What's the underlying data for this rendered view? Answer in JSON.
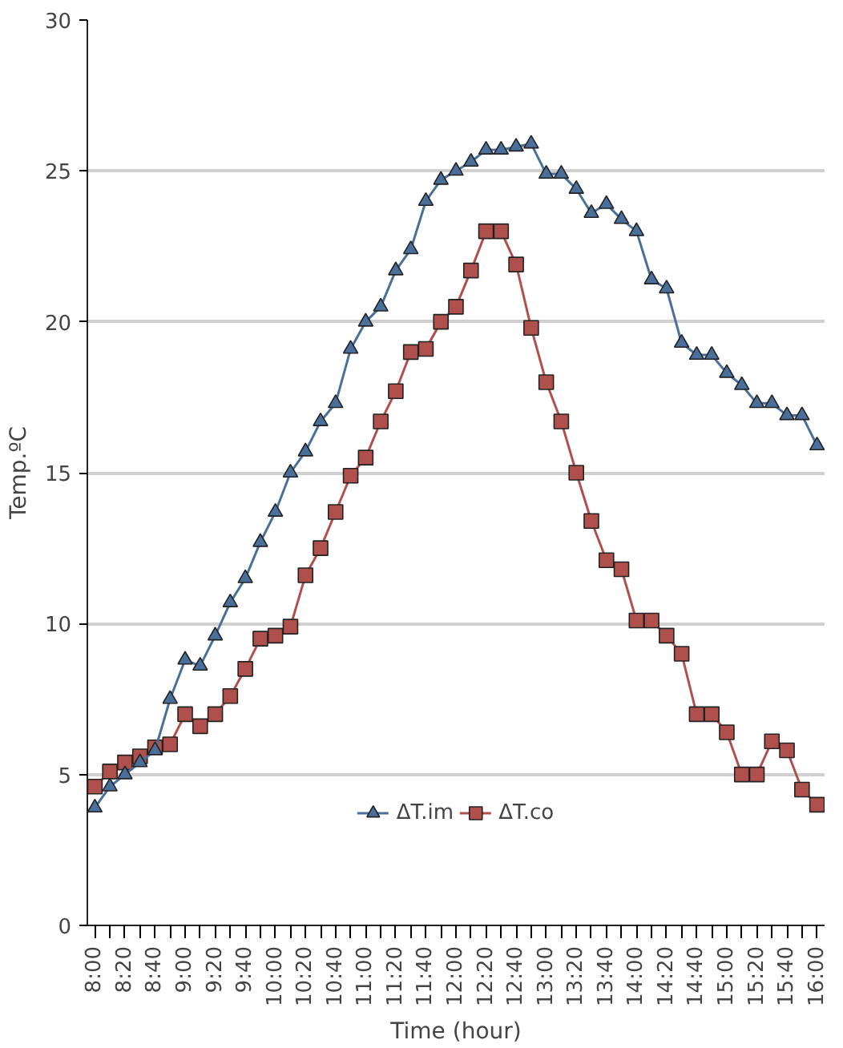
{
  "chart_data": {
    "type": "line",
    "xlabel": "Time (hour)",
    "ylabel": "Temp.ºC",
    "categories": [
      "8:00",
      null,
      "8:20",
      null,
      "8:40",
      null,
      "9:00",
      null,
      "9:20",
      null,
      "9:40",
      null,
      "10:00",
      null,
      "10:20",
      null,
      "10:40",
      null,
      "11:00",
      null,
      "11:20",
      null,
      "11:40",
      null,
      "12:00",
      null,
      "12:20",
      null,
      "12:40",
      null,
      "13:00",
      null,
      "13:20",
      null,
      "13:40",
      null,
      "14:00",
      null,
      "14:20",
      null,
      "14:40",
      null,
      "15:00",
      null,
      "15:20",
      null,
      "15:40",
      null,
      "16:00"
    ],
    "series": [
      {
        "name": "ΔT.im",
        "color": "#4a6f9a",
        "marker": "triangle",
        "values": [
          3.9,
          4.6,
          5.0,
          5.4,
          5.8,
          7.5,
          8.8,
          8.6,
          9.6,
          10.7,
          11.5,
          12.7,
          13.7,
          15.0,
          15.7,
          16.7,
          17.3,
          19.1,
          20.0,
          20.5,
          21.7,
          22.4,
          24.0,
          24.7,
          25.0,
          25.3,
          25.7,
          25.7,
          25.8,
          25.9,
          24.9,
          24.9,
          24.4,
          23.6,
          23.9,
          23.4,
          23.0,
          21.4,
          21.1,
          19.3,
          18.9,
          18.9,
          18.3,
          17.9,
          17.3,
          17.3,
          16.9,
          16.9,
          15.9
        ]
      },
      {
        "name": "ΔT.co",
        "color": "#b0504d",
        "marker": "square",
        "values": [
          4.6,
          5.1,
          5.4,
          5.6,
          5.9,
          6.0,
          7.0,
          6.6,
          7.0,
          7.6,
          8.5,
          9.5,
          9.6,
          9.9,
          11.6,
          12.5,
          13.7,
          14.9,
          15.5,
          16.7,
          17.7,
          19.0,
          19.1,
          20.0,
          20.5,
          21.7,
          23.0,
          23.0,
          21.9,
          19.8,
          18.0,
          16.7,
          15.0,
          13.4,
          12.1,
          11.8,
          10.1,
          10.1,
          9.6,
          9.0,
          7.0,
          7.0,
          6.4,
          5.0,
          5.0,
          6.1,
          5.8,
          4.5,
          4.0
        ]
      }
    ],
    "ylim": [
      0,
      30
    ],
    "yticks": [
      0,
      5,
      10,
      15,
      20,
      25,
      30
    ],
    "grid": "y",
    "legend": "bottom",
    "line_style": "solid"
  }
}
